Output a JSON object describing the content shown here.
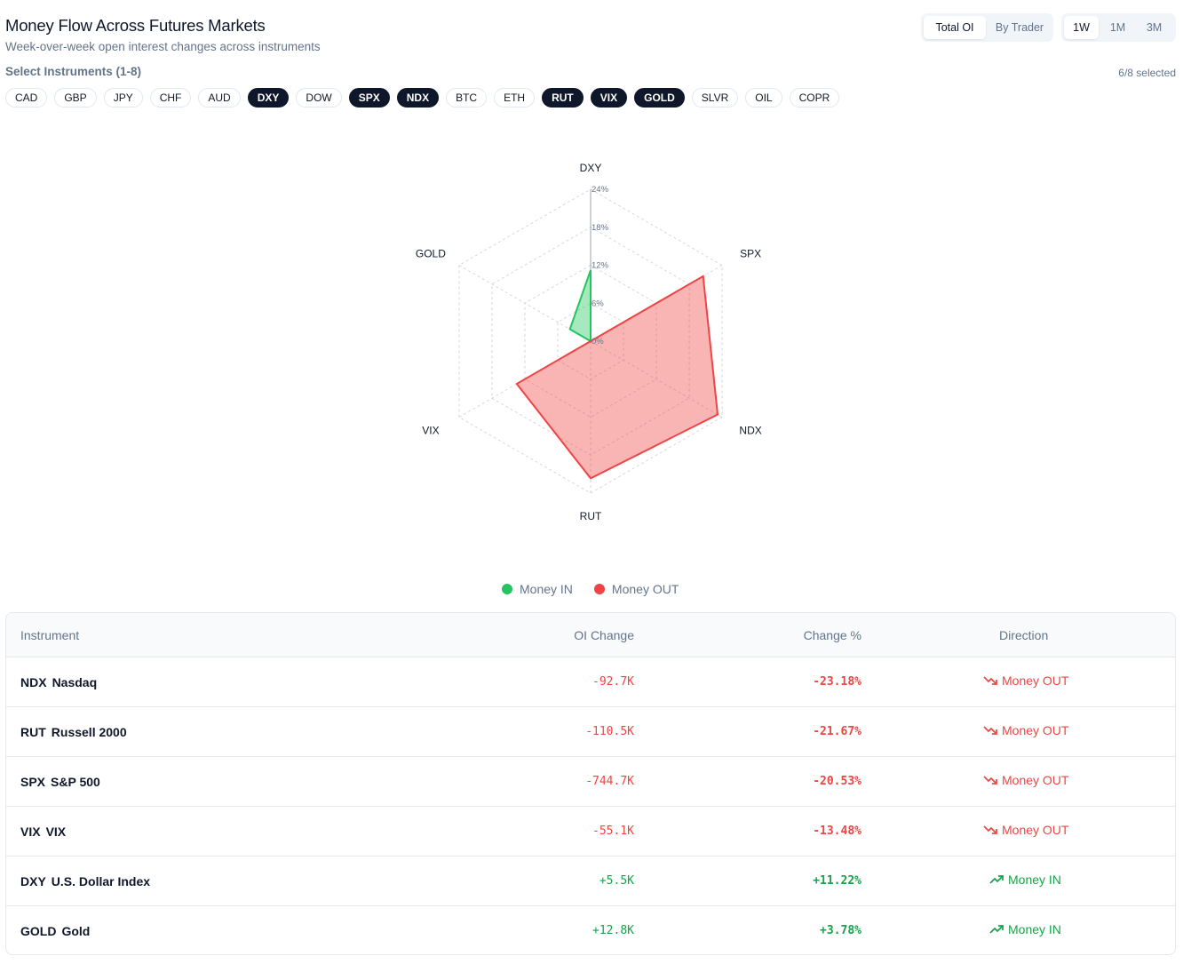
{
  "header": {
    "title": "Money Flow Across Futures Markets",
    "subtitle": "Week-over-week open interest changes across instruments"
  },
  "mode_toggle": {
    "options": [
      "Total OI",
      "By Trader"
    ],
    "selected": "Total OI"
  },
  "range_toggle": {
    "options": [
      "1W",
      "1M",
      "3M"
    ],
    "selected": "1W"
  },
  "selector": {
    "label": "Select Instruments (1-8)",
    "count": "6/8 selected",
    "chips": [
      {
        "label": "CAD",
        "on": false
      },
      {
        "label": "GBP",
        "on": false
      },
      {
        "label": "JPY",
        "on": false
      },
      {
        "label": "CHF",
        "on": false
      },
      {
        "label": "AUD",
        "on": false
      },
      {
        "label": "DXY",
        "on": true
      },
      {
        "label": "DOW",
        "on": false
      },
      {
        "label": "SPX",
        "on": true
      },
      {
        "label": "NDX",
        "on": true
      },
      {
        "label": "BTC",
        "on": false
      },
      {
        "label": "ETH",
        "on": false
      },
      {
        "label": "RUT",
        "on": true
      },
      {
        "label": "VIX",
        "on": true
      },
      {
        "label": "GOLD",
        "on": true
      },
      {
        "label": "SLVR",
        "on": false
      },
      {
        "label": "OIL",
        "on": false
      },
      {
        "label": "COPR",
        "on": false
      }
    ]
  },
  "chart_data": {
    "type": "radar",
    "axes": [
      "DXY",
      "SPX",
      "NDX",
      "RUT",
      "VIX",
      "GOLD"
    ],
    "ticks": [
      "0%",
      "6%",
      "12%",
      "18%",
      "24%"
    ],
    "range": [
      0,
      24
    ],
    "series": [
      {
        "name": "Money IN",
        "color": "#22c55e",
        "values": [
          11.22,
          0,
          0,
          0,
          0,
          3.78
        ]
      },
      {
        "name": "Money OUT",
        "color": "#ef4444",
        "values": [
          0,
          20.53,
          23.18,
          21.67,
          13.48,
          0
        ]
      }
    ],
    "legend_position": "bottom"
  },
  "legend": {
    "in_label": "Money IN",
    "out_label": "Money OUT",
    "in_color": "#22c55e",
    "out_color": "#ef4444"
  },
  "table": {
    "headers": {
      "instrument": "Instrument",
      "oi_change": "OI Change",
      "change_pct": "Change %",
      "direction": "Direction"
    },
    "rows": [
      {
        "symbol": "NDX",
        "name": "Nasdaq",
        "oi_change": "-92.7K",
        "change_pct": "-23.18%",
        "direction": "Money OUT",
        "trend": "down"
      },
      {
        "symbol": "RUT",
        "name": "Russell 2000",
        "oi_change": "-110.5K",
        "change_pct": "-21.67%",
        "direction": "Money OUT",
        "trend": "down"
      },
      {
        "symbol": "SPX",
        "name": "S&P 500",
        "oi_change": "-744.7K",
        "change_pct": "-20.53%",
        "direction": "Money OUT",
        "trend": "down"
      },
      {
        "symbol": "VIX",
        "name": "VIX",
        "oi_change": "-55.1K",
        "change_pct": "-13.48%",
        "direction": "Money OUT",
        "trend": "down"
      },
      {
        "symbol": "DXY",
        "name": "U.S. Dollar Index",
        "oi_change": "+5.5K",
        "change_pct": "+11.22%",
        "direction": "Money IN",
        "trend": "up"
      },
      {
        "symbol": "GOLD",
        "name": "Gold",
        "oi_change": "+12.8K",
        "change_pct": "+3.78%",
        "direction": "Money IN",
        "trend": "up"
      }
    ]
  }
}
